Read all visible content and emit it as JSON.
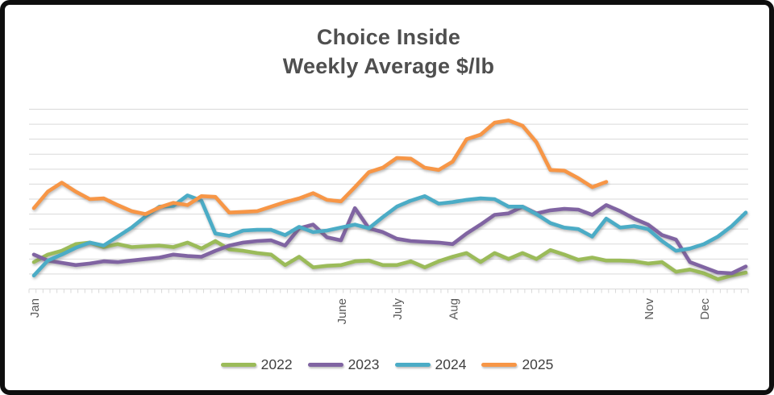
{
  "title": {
    "line1": "Choice Inside",
    "line2": "Weekly Average $/lb"
  },
  "legend": {
    "position": "bottom-center"
  },
  "colors": {
    "series_2022": "#9bbb59",
    "series_2023": "#8064a2",
    "series_2024": "#4bacc6",
    "series_2025": "#f79646",
    "gridline": "#d9d9d9",
    "title_text": "#4f4f4f",
    "axis_text": "#595959",
    "legend_text": "#404040",
    "frame_border": "#0e0e0e"
  },
  "chart_data": {
    "type": "line",
    "title": "Choice Inside Weekly Average $/lb",
    "xlabel": "",
    "ylabel": "",
    "x_unit": "week of year (52 weekly points, Jan-Dec)",
    "y_axis_labels_visible": false,
    "y_unit_note": "value axis has no visible labels; values below are estimated in gridline units (1 unit = 1 gridline interval, 0 = bottom axis)",
    "ylim": [
      0,
      12
    ],
    "gridlines": true,
    "legend_position": "bottom",
    "x_tick_labels": [
      {
        "label": "Jan",
        "week": 0
      },
      {
        "label": "June",
        "week": 22
      },
      {
        "label": "July",
        "week": 26
      },
      {
        "label": "Aug",
        "week": 30
      },
      {
        "label": "Nov",
        "week": 44
      },
      {
        "label": "Dec",
        "week": 48
      }
    ],
    "series": [
      {
        "name": "2022",
        "color": "#9bbb59",
        "start_week": 0,
        "values": [
          1.8,
          2.3,
          2.55,
          3.0,
          3.1,
          2.8,
          3.0,
          2.8,
          2.85,
          2.9,
          2.8,
          3.1,
          2.7,
          3.2,
          2.65,
          2.55,
          2.4,
          2.3,
          1.6,
          2.15,
          1.45,
          1.55,
          1.6,
          1.85,
          1.9,
          1.6,
          1.6,
          1.85,
          1.45,
          1.85,
          2.15,
          2.4,
          1.8,
          2.4,
          2.0,
          2.4,
          2.0,
          2.6,
          2.3,
          1.95,
          2.1,
          1.9,
          1.9,
          1.85,
          1.7,
          1.8,
          1.15,
          1.3,
          1.05,
          0.65,
          0.9,
          1.1
        ]
      },
      {
        "name": "2023",
        "color": "#8064a2",
        "start_week": 0,
        "values": [
          2.3,
          1.9,
          1.75,
          1.6,
          1.7,
          1.85,
          1.8,
          1.9,
          2.0,
          2.1,
          2.3,
          2.2,
          2.15,
          2.55,
          2.9,
          3.1,
          3.2,
          3.25,
          2.9,
          4.05,
          4.3,
          3.45,
          3.25,
          5.4,
          4.05,
          3.8,
          3.35,
          3.2,
          3.15,
          3.1,
          3.0,
          3.7,
          4.3,
          4.95,
          5.05,
          5.5,
          5.05,
          5.25,
          5.35,
          5.3,
          4.95,
          5.6,
          5.2,
          4.7,
          4.3,
          3.6,
          3.3,
          1.8,
          1.45,
          1.1,
          1.05,
          1.5
        ]
      },
      {
        "name": "2024",
        "color": "#4bacc6",
        "start_week": 0,
        "values": [
          0.9,
          1.9,
          2.3,
          2.75,
          3.1,
          2.9,
          3.5,
          4.1,
          4.85,
          5.5,
          5.55,
          6.25,
          5.9,
          3.7,
          3.55,
          3.9,
          3.95,
          3.95,
          3.6,
          4.15,
          3.8,
          3.9,
          4.1,
          4.3,
          4.05,
          4.8,
          5.5,
          5.9,
          6.2,
          5.7,
          5.8,
          5.95,
          6.05,
          6.0,
          5.5,
          5.5,
          5.0,
          4.4,
          4.1,
          4.0,
          3.5,
          4.7,
          4.1,
          4.2,
          4.0,
          3.2,
          2.55,
          2.7,
          3.0,
          3.5,
          4.2,
          5.1
        ]
      },
      {
        "name": "2025",
        "color": "#f79646",
        "start_week": 0,
        "values": [
          5.4,
          6.5,
          7.1,
          6.5,
          6.0,
          6.05,
          5.6,
          5.2,
          5.0,
          5.45,
          5.75,
          5.6,
          6.2,
          6.15,
          5.1,
          5.15,
          5.2,
          5.5,
          5.8,
          6.05,
          6.4,
          5.95,
          5.85,
          6.8,
          7.8,
          8.1,
          8.75,
          8.7,
          8.1,
          7.95,
          8.5,
          10.0,
          10.3,
          11.1,
          11.25,
          10.9,
          9.8,
          7.95,
          7.9,
          7.4,
          6.8,
          7.15
        ]
      }
    ]
  }
}
